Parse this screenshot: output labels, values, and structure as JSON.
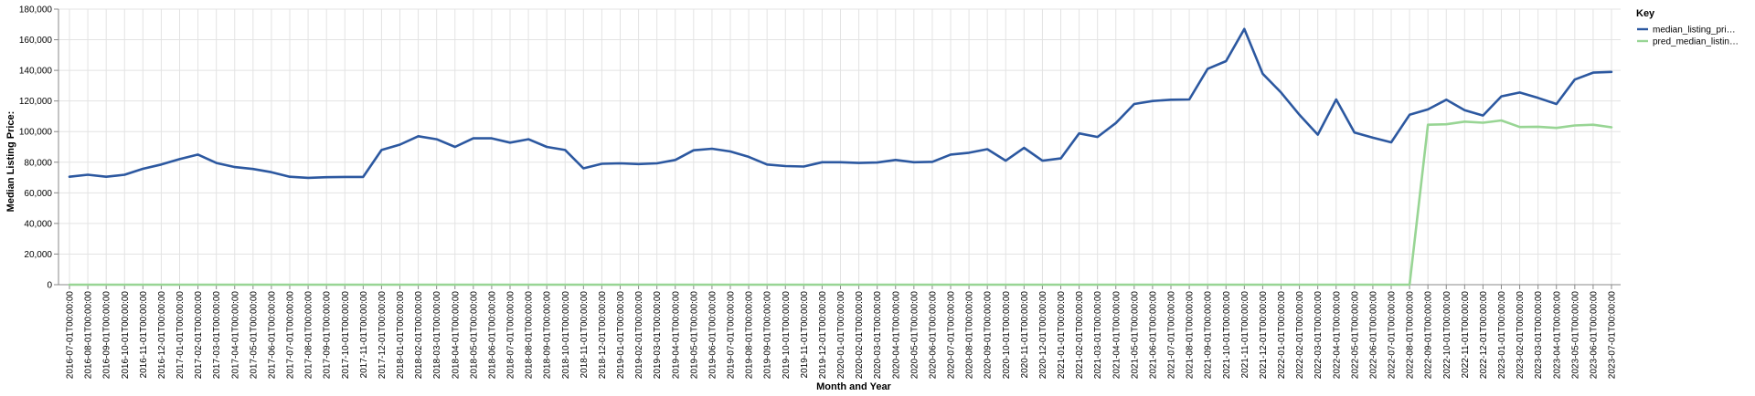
{
  "chart_data": {
    "type": "line",
    "xlabel": "Month and Year",
    "ylabel": "Median Listing Price:",
    "ylim": [
      0,
      180000
    ],
    "yticks": [
      "0",
      "20,000",
      "40,000",
      "60,000",
      "80,000",
      "100,000",
      "120,000",
      "140,000",
      "160,000",
      "180,000"
    ],
    "grid": true,
    "legend": {
      "title": "Key",
      "placement": "top-right"
    },
    "x": [
      "2016-07-01T00:00:00",
      "2016-08-01T00:00:00",
      "2016-09-01T00:00:00",
      "2016-10-01T00:00:00",
      "2016-11-01T00:00:00",
      "2016-12-01T00:00:00",
      "2017-01-01T00:00:00",
      "2017-02-01T00:00:00",
      "2017-03-01T00:00:00",
      "2017-04-01T00:00:00",
      "2017-05-01T00:00:00",
      "2017-06-01T00:00:00",
      "2017-07-01T00:00:00",
      "2017-08-01T00:00:00",
      "2017-09-01T00:00:00",
      "2017-10-01T00:00:00",
      "2017-11-01T00:00:00",
      "2017-12-01T00:00:00",
      "2018-01-01T00:00:00",
      "2018-02-01T00:00:00",
      "2018-03-01T00:00:00",
      "2018-04-01T00:00:00",
      "2018-05-01T00:00:00",
      "2018-06-01T00:00:00",
      "2018-07-01T00:00:00",
      "2018-08-01T00:00:00",
      "2018-09-01T00:00:00",
      "2018-10-01T00:00:00",
      "2018-11-01T00:00:00",
      "2018-12-01T00:00:00",
      "2019-01-01T00:00:00",
      "2019-02-01T00:00:00",
      "2019-03-01T00:00:00",
      "2019-04-01T00:00:00",
      "2019-05-01T00:00:00",
      "2019-06-01T00:00:00",
      "2019-07-01T00:00:00",
      "2019-08-01T00:00:00",
      "2019-09-01T00:00:00",
      "2019-10-01T00:00:00",
      "2019-11-01T00:00:00",
      "2019-12-01T00:00:00",
      "2020-01-01T00:00:00",
      "2020-02-01T00:00:00",
      "2020-03-01T00:00:00",
      "2020-04-01T00:00:00",
      "2020-05-01T00:00:00",
      "2020-06-01T00:00:00",
      "2020-07-01T00:00:00",
      "2020-08-01T00:00:00",
      "2020-09-01T00:00:00",
      "2020-10-01T00:00:00",
      "2020-11-01T00:00:00",
      "2020-12-01T00:00:00",
      "2021-01-01T00:00:00",
      "2021-02-01T00:00:00",
      "2021-03-01T00:00:00",
      "2021-04-01T00:00:00",
      "2021-05-01T00:00:00",
      "2021-06-01T00:00:00",
      "2021-07-01T00:00:00",
      "2021-08-01T00:00:00",
      "2021-09-01T00:00:00",
      "2021-10-01T00:00:00",
      "2021-11-01T00:00:00",
      "2021-12-01T00:00:00",
      "2022-01-01T00:00:00",
      "2022-02-01T00:00:00",
      "2022-03-01T00:00:00",
      "2022-04-01T00:00:00",
      "2022-05-01T00:00:00",
      "2022-06-01T00:00:00",
      "2022-07-01T00:00:00",
      "2022-08-01T00:00:00",
      "2022-09-01T00:00:00",
      "2022-10-01T00:00:00",
      "2022-11-01T00:00:00",
      "2022-12-01T00:00:00",
      "2023-01-01T00:00:00",
      "2023-02-01T00:00:00",
      "2023-03-01T00:00:00",
      "2023-04-01T00:00:00",
      "2023-05-01T00:00:00",
      "2023-06-01T00:00:00",
      "2023-07-01T00:00:00"
    ],
    "series": [
      {
        "name": "median_listing_pri…",
        "color": "#2c58a0",
        "values": [
          70500,
          71800,
          70500,
          71800,
          75700,
          78500,
          82000,
          85000,
          79500,
          76800,
          75600,
          73500,
          70500,
          69800,
          70200,
          70400,
          70400,
          88000,
          91500,
          97000,
          95000,
          90000,
          95600,
          95600,
          92800,
          95000,
          90000,
          88000,
          76000,
          79000,
          79300,
          78800,
          79300,
          81500,
          87800,
          88800,
          87000,
          83500,
          78500,
          77500,
          77200,
          80000,
          80000,
          79500,
          79800,
          81500,
          80000,
          80200,
          85000,
          86200,
          88500,
          81000,
          89400,
          81000,
          82500,
          98800,
          96500,
          105600,
          118000,
          120000,
          120800,
          121000,
          141000,
          146000,
          167000,
          137800,
          125500,
          111000,
          98000,
          121000,
          99400,
          96000,
          93000,
          111000,
          114500,
          120800,
          114000,
          110500,
          123000,
          125500,
          122000,
          118000,
          134000,
          138500,
          139000
        ]
      },
      {
        "name": "pred_median_listin…",
        "color": "#98d594",
        "values": [
          0,
          0,
          0,
          0,
          0,
          0,
          0,
          0,
          0,
          0,
          0,
          0,
          0,
          0,
          0,
          0,
          0,
          0,
          0,
          0,
          0,
          0,
          0,
          0,
          0,
          0,
          0,
          0,
          0,
          0,
          0,
          0,
          0,
          0,
          0,
          0,
          0,
          0,
          0,
          0,
          0,
          0,
          0,
          0,
          0,
          0,
          0,
          0,
          0,
          0,
          0,
          0,
          0,
          0,
          0,
          0,
          0,
          0,
          0,
          0,
          0,
          0,
          0,
          0,
          0,
          0,
          0,
          0,
          0,
          0,
          0,
          0,
          0,
          0,
          104500,
          104800,
          106500,
          105800,
          107300,
          103000,
          103200,
          102400,
          104000,
          104500,
          102800
        ]
      }
    ]
  }
}
